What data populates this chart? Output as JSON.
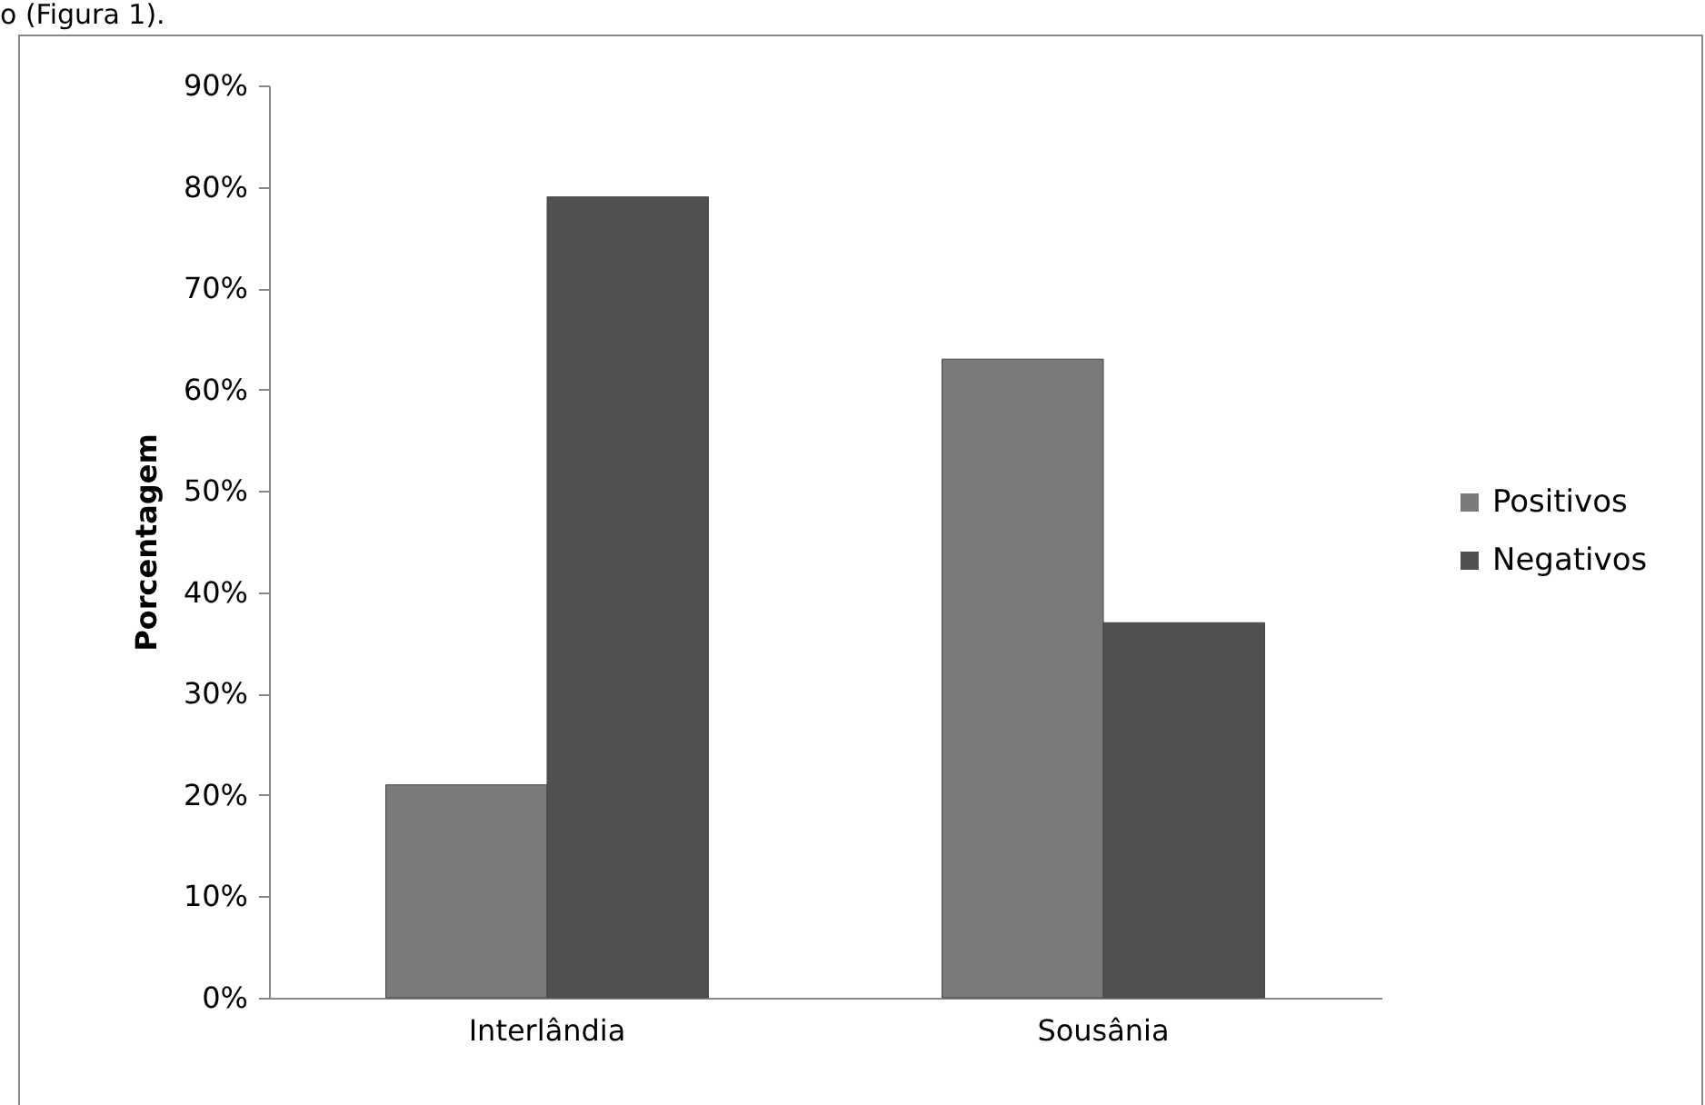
{
  "chart_data": {
    "type": "bar",
    "ylabel": "Porcentagem",
    "categories": [
      "Interlândia",
      "Sousânia"
    ],
    "series": [
      {
        "name": "Positivos",
        "color": "#7a7a7a",
        "values": [
          21,
          63
        ]
      },
      {
        "name": "Negativos",
        "color": "#505050",
        "values": [
          79,
          37
        ]
      }
    ],
    "ylim": [
      0,
      90
    ],
    "yticks": [
      {
        "value": 0,
        "label": "0%"
      },
      {
        "value": 10,
        "label": "10%"
      },
      {
        "value": 20,
        "label": "20%"
      },
      {
        "value": 30,
        "label": "30%"
      },
      {
        "value": 40,
        "label": "40%"
      },
      {
        "value": 50,
        "label": "50%"
      },
      {
        "value": 60,
        "label": "60%"
      },
      {
        "value": 70,
        "label": "70%"
      },
      {
        "value": 80,
        "label": "80%"
      },
      {
        "value": 90,
        "label": "90%"
      }
    ],
    "grid": false,
    "legend": "right",
    "annotations": [
      "o (Figura 1)."
    ]
  }
}
